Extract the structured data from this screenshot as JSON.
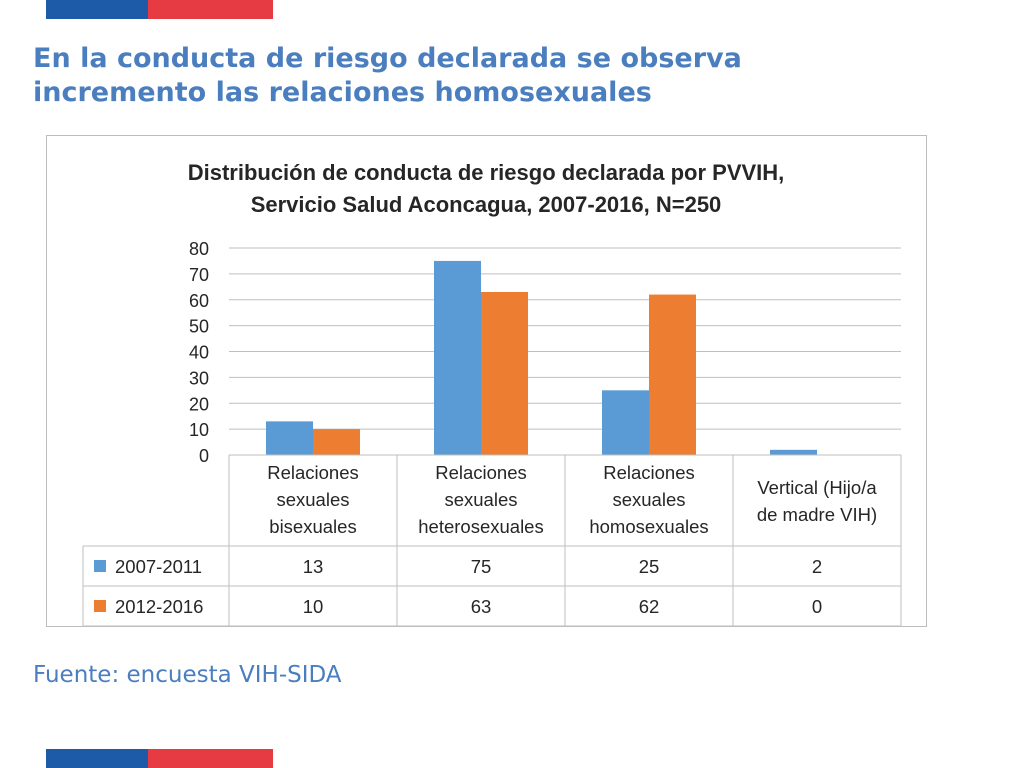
{
  "slide": {
    "title_line1": "En la conducta de riesgo declarada se observa",
    "title_line2": "incremento las relaciones homosexuales",
    "source": "Fuente: encuesta VIH-SIDA"
  },
  "colors": {
    "flag_blue": "#1d5ba8",
    "flag_red": "#e63b43",
    "title_text": "#4a7ebf",
    "series_1": "#5b9bd5",
    "series_2": "#ed7d31"
  },
  "chart_data": {
    "type": "bar",
    "title_lines": [
      "Distribución de conducta de riesgo declarada por PVVIH,",
      "Servicio Salud Aconcagua,  2007-2016, N=250"
    ],
    "categories": [
      [
        "Relaciones",
        "sexuales",
        "bisexuales"
      ],
      [
        "Relaciones",
        "sexuales",
        "heterosexuales"
      ],
      [
        "Relaciones",
        "sexuales",
        "homosexuales"
      ],
      [
        "Vertical (Hijo/a",
        "de madre VIH)"
      ]
    ],
    "series": [
      {
        "name": "2007-2011",
        "values": [
          13,
          75,
          25,
          2
        ]
      },
      {
        "name": "2012-2016",
        "values": [
          10,
          63,
          62,
          0
        ]
      }
    ],
    "ylim": [
      0,
      80
    ],
    "yticks": [
      0,
      10,
      20,
      30,
      40,
      50,
      60,
      70,
      80
    ],
    "grid": true,
    "legend": "data-table"
  }
}
